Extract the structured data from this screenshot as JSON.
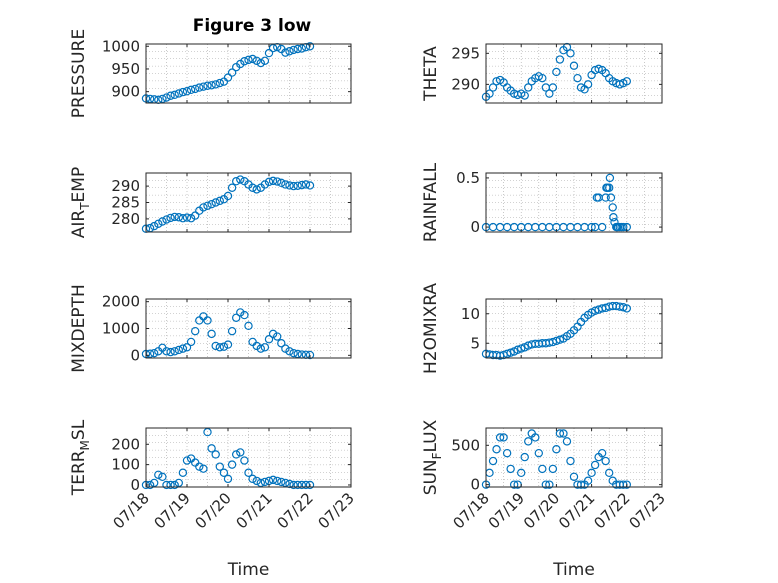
{
  "figure_title": "Figure 3 low",
  "colors": {
    "marker": "#0072BD",
    "axis": "#262626",
    "grid": "#a6a6a6"
  },
  "chart_data": [
    {
      "type": "scatter",
      "id": "pressure",
      "title": "Figure 3 low",
      "xlabel": "",
      "ylabel": "PRESSURE",
      "ylim": [
        875,
        1005
      ],
      "yticks": [
        900,
        950,
        1000
      ],
      "grid": true,
      "x": [
        0.0,
        0.1,
        0.2,
        0.3,
        0.4,
        0.5,
        0.6,
        0.7,
        0.8,
        0.9,
        1.0,
        1.1,
        1.2,
        1.3,
        1.4,
        1.5,
        1.6,
        1.7,
        1.8,
        1.9,
        2.0,
        2.1,
        2.2,
        2.3,
        2.4,
        2.5,
        2.6,
        2.7,
        2.8,
        2.9,
        3.0,
        3.1,
        3.2,
        3.3,
        3.4,
        3.5,
        3.6,
        3.7,
        3.8,
        3.9,
        4.0
      ],
      "y": [
        885,
        884,
        883,
        882,
        884,
        887,
        891,
        893,
        896,
        899,
        901,
        904,
        906,
        909,
        911,
        913,
        914,
        916,
        919,
        922,
        931,
        942,
        954,
        961,
        967,
        970,
        972,
        968,
        963,
        968,
        985,
        996,
        998,
        994,
        986,
        989,
        992,
        994,
        995,
        998,
        1000
      ]
    },
    {
      "type": "scatter",
      "id": "theta",
      "title": "",
      "xlabel": "",
      "ylabel": "THETA",
      "ylim": [
        287,
        296.5
      ],
      "yticks": [
        290,
        295
      ],
      "grid": true,
      "x": [
        0.0,
        0.1,
        0.2,
        0.3,
        0.4,
        0.5,
        0.6,
        0.7,
        0.8,
        0.9,
        1.0,
        1.1,
        1.2,
        1.3,
        1.4,
        1.5,
        1.6,
        1.7,
        1.8,
        1.9,
        2.0,
        2.1,
        2.2,
        2.3,
        2.4,
        2.5,
        2.6,
        2.7,
        2.8,
        2.9,
        3.0,
        3.1,
        3.2,
        3.3,
        3.4,
        3.5,
        3.6,
        3.7,
        3.8,
        3.9,
        4.0
      ],
      "y": [
        288,
        288.5,
        289.5,
        290.5,
        290.7,
        290.3,
        289.5,
        289,
        288.5,
        288.3,
        288.5,
        288.2,
        289.5,
        290.5,
        291,
        291.3,
        291,
        289.5,
        288.5,
        289.5,
        292,
        294,
        295.5,
        296,
        295,
        293,
        291,
        289.5,
        289.2,
        290,
        291.5,
        292.3,
        292.5,
        292.3,
        291.8,
        291,
        290.5,
        290.2,
        290,
        290.2,
        290.5
      ]
    },
    {
      "type": "scatter",
      "id": "air_temp",
      "title": "",
      "xlabel": "",
      "ylabel": "AIR",
      "ylabel_subscript": "T",
      "ylabel_suffix": "EMP",
      "ylim": [
        276,
        294
      ],
      "yticks": [
        280,
        285,
        290
      ],
      "grid": true,
      "x": [
        0.0,
        0.1,
        0.2,
        0.3,
        0.4,
        0.5,
        0.6,
        0.7,
        0.8,
        0.9,
        1.0,
        1.1,
        1.2,
        1.3,
        1.4,
        1.5,
        1.6,
        1.7,
        1.8,
        1.9,
        2.0,
        2.1,
        2.2,
        2.3,
        2.4,
        2.5,
        2.6,
        2.7,
        2.8,
        2.9,
        3.0,
        3.1,
        3.2,
        3.3,
        3.4,
        3.5,
        3.6,
        3.7,
        3.8,
        3.9,
        4.0
      ],
      "y": [
        277,
        277.2,
        277.8,
        278.5,
        279.2,
        279.8,
        280.3,
        280.6,
        280.5,
        280.2,
        280.4,
        280.2,
        281,
        282.5,
        283.5,
        284,
        284.5,
        285,
        285.5,
        286,
        287,
        289.5,
        291.5,
        292,
        291.5,
        290.5,
        289.5,
        289,
        289.5,
        290.5,
        291.3,
        291.6,
        291.4,
        291,
        290.5,
        290.2,
        290,
        290.1,
        290.3,
        290.5,
        290.2
      ]
    },
    {
      "type": "scatter",
      "id": "rainfall",
      "title": "",
      "xlabel": "",
      "ylabel": "RAINFALL",
      "ylim": [
        -0.05,
        0.55
      ],
      "yticks": [
        0,
        0.5
      ],
      "grid": true,
      "x": [
        0.0,
        0.2,
        0.4,
        0.6,
        0.8,
        1.0,
        1.2,
        1.4,
        1.6,
        1.8,
        2.0,
        2.2,
        2.4,
        2.6,
        2.8,
        3.0,
        3.1,
        3.15,
        3.2,
        3.3,
        3.4,
        3.42,
        3.45,
        3.5,
        3.52,
        3.55,
        3.6,
        3.62,
        3.65,
        3.7,
        3.72,
        3.75,
        3.8,
        3.85,
        3.9,
        4.0
      ],
      "y": [
        0,
        0,
        0,
        0,
        0,
        0,
        0,
        0,
        0,
        0,
        0,
        0,
        0,
        0,
        0,
        0,
        0,
        0.3,
        0.3,
        0,
        0.3,
        0.4,
        0.4,
        0.4,
        0.5,
        0.3,
        0.2,
        0.1,
        0.05,
        0,
        0,
        0,
        0,
        0,
        0,
        0
      ]
    },
    {
      "type": "scatter",
      "id": "mixdepth",
      "title": "",
      "xlabel": "",
      "ylabel": "MIXDEPTH",
      "ylim": [
        -100,
        2100
      ],
      "yticks": [
        0,
        1000,
        2000
      ],
      "grid": true,
      "x": [
        0.0,
        0.1,
        0.2,
        0.3,
        0.4,
        0.5,
        0.6,
        0.7,
        0.8,
        0.9,
        1.0,
        1.1,
        1.2,
        1.3,
        1.4,
        1.5,
        1.6,
        1.7,
        1.8,
        1.9,
        2.0,
        2.1,
        2.2,
        2.3,
        2.4,
        2.5,
        2.6,
        2.7,
        2.8,
        2.9,
        3.0,
        3.1,
        3.2,
        3.3,
        3.4,
        3.5,
        3.6,
        3.7,
        3.8,
        3.9,
        4.0
      ],
      "y": [
        50,
        60,
        80,
        150,
        280,
        150,
        120,
        150,
        200,
        250,
        300,
        500,
        900,
        1300,
        1450,
        1300,
        800,
        350,
        300,
        320,
        400,
        900,
        1400,
        1600,
        1500,
        1100,
        500,
        350,
        250,
        300,
        600,
        800,
        700,
        450,
        250,
        150,
        80,
        50,
        30,
        20,
        10
      ]
    },
    {
      "type": "scatter",
      "id": "h2omixra",
      "title": "",
      "xlabel": "",
      "ylabel": "H2OMIXRA",
      "ylim": [
        2.5,
        12.5
      ],
      "yticks": [
        5,
        10
      ],
      "grid": true,
      "x": [
        0.0,
        0.1,
        0.2,
        0.3,
        0.4,
        0.5,
        0.6,
        0.7,
        0.8,
        0.9,
        1.0,
        1.1,
        1.2,
        1.3,
        1.4,
        1.5,
        1.6,
        1.7,
        1.8,
        1.9,
        2.0,
        2.1,
        2.2,
        2.3,
        2.4,
        2.5,
        2.6,
        2.7,
        2.8,
        2.9,
        3.0,
        3.1,
        3.2,
        3.3,
        3.4,
        3.5,
        3.6,
        3.7,
        3.8,
        3.9,
        4.0
      ],
      "y": [
        3.2,
        3.1,
        3.0,
        3.0,
        2.9,
        3.0,
        3.2,
        3.4,
        3.6,
        3.9,
        4.1,
        4.3,
        4.6,
        4.8,
        4.9,
        4.9,
        5.0,
        5.0,
        5.1,
        5.2,
        5.4,
        5.6,
        5.8,
        6.2,
        6.6,
        7.2,
        7.8,
        8.6,
        9.3,
        9.8,
        10.2,
        10.5,
        10.7,
        10.9,
        11.0,
        11.2,
        11.3,
        11.3,
        11.2,
        11.1,
        10.9
      ]
    },
    {
      "type": "scatter",
      "id": "terr_msl",
      "title": "",
      "xlabel": "Time",
      "ylabel": "TERR",
      "ylabel_subscript": "M",
      "ylabel_suffix": "SL",
      "ylim": [
        -10,
        280
      ],
      "yticks": [
        0,
        100,
        200
      ],
      "xticklabels": [
        "07/18",
        "07/19",
        "07/20",
        "07/21",
        "07/22",
        "07/23"
      ],
      "grid": true,
      "x": [
        0.0,
        0.1,
        0.2,
        0.3,
        0.4,
        0.5,
        0.6,
        0.7,
        0.8,
        0.9,
        1.0,
        1.1,
        1.2,
        1.3,
        1.4,
        1.5,
        1.6,
        1.7,
        1.8,
        1.9,
        2.0,
        2.1,
        2.2,
        2.3,
        2.4,
        2.5,
        2.6,
        2.7,
        2.8,
        2.9,
        3.0,
        3.1,
        3.2,
        3.3,
        3.4,
        3.5,
        3.6,
        3.7,
        3.8,
        3.9,
        4.0
      ],
      "y": [
        0,
        0,
        10,
        50,
        40,
        0,
        0,
        0,
        10,
        60,
        120,
        130,
        110,
        90,
        80,
        260,
        180,
        150,
        90,
        60,
        30,
        100,
        150,
        160,
        120,
        60,
        30,
        20,
        10,
        15,
        20,
        25,
        20,
        15,
        10,
        5,
        0,
        0,
        0,
        0,
        0
      ]
    },
    {
      "type": "scatter",
      "id": "sun_flux",
      "title": "",
      "xlabel": "Time",
      "ylabel": "SUN",
      "ylabel_subscript": "F",
      "ylabel_suffix": "LUX",
      "ylim": [
        -30,
        720
      ],
      "yticks": [
        0,
        500
      ],
      "xticklabels": [
        "07/18",
        "07/19",
        "07/20",
        "07/21",
        "07/22",
        "07/23"
      ],
      "grid": true,
      "x": [
        0.0,
        0.1,
        0.2,
        0.3,
        0.4,
        0.5,
        0.6,
        0.7,
        0.8,
        0.9,
        1.0,
        1.1,
        1.2,
        1.3,
        1.4,
        1.5,
        1.6,
        1.7,
        1.8,
        1.9,
        2.0,
        2.1,
        2.2,
        2.3,
        2.4,
        2.5,
        2.6,
        2.7,
        2.8,
        2.9,
        3.0,
        3.1,
        3.2,
        3.3,
        3.4,
        3.5,
        3.6,
        3.7,
        3.8,
        3.9,
        4.0
      ],
      "y": [
        0,
        150,
        300,
        450,
        600,
        600,
        400,
        200,
        0,
        0,
        150,
        350,
        550,
        650,
        600,
        400,
        200,
        0,
        0,
        200,
        450,
        650,
        650,
        550,
        300,
        100,
        0,
        0,
        0,
        50,
        150,
        250,
        350,
        400,
        300,
        150,
        50,
        0,
        0,
        0,
        0
      ]
    }
  ]
}
